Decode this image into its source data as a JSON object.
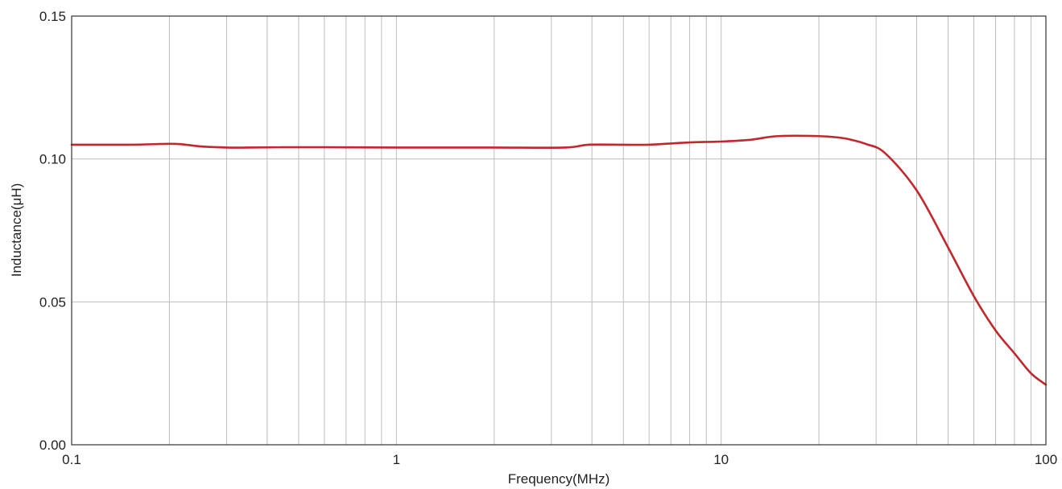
{
  "chart_data": {
    "type": "line",
    "xlabel": "Frequency(MHz)",
    "ylabel": "Inductance(μH)",
    "xscale": "log",
    "xlim": [
      0.1,
      100
    ],
    "ylim": [
      0,
      0.15
    ],
    "x_ticks": [
      {
        "value": 0.1,
        "label": "0.1"
      },
      {
        "value": 1,
        "label": "1"
      },
      {
        "value": 10,
        "label": "10"
      },
      {
        "value": 100,
        "label": "100"
      }
    ],
    "y_ticks": [
      {
        "value": 0,
        "label": "0.00"
      },
      {
        "value": 0.05,
        "label": "0.05"
      },
      {
        "value": 0.1,
        "label": "0.10"
      },
      {
        "value": 0.15,
        "label": "0.15"
      }
    ],
    "grid": true,
    "colors": {
      "line": "#c0282d",
      "grid": "#bdbdbd",
      "axis": "#333333"
    },
    "series": [
      {
        "x": [
          0.1,
          0.15,
          0.2,
          0.22,
          0.25,
          0.3,
          0.35,
          0.45,
          0.6,
          1,
          2,
          3.3,
          3.9,
          5,
          6,
          8,
          10,
          12,
          13,
          15,
          20,
          23,
          25,
          28,
          32,
          40,
          50,
          60,
          70,
          80,
          90,
          100
        ],
        "values": [
          0.105,
          0.105,
          0.1053,
          0.1051,
          0.1044,
          0.104,
          0.104,
          0.1041,
          0.1041,
          0.104,
          0.104,
          0.104,
          0.105,
          0.105,
          0.105,
          0.1058,
          0.1061,
          0.1066,
          0.1071,
          0.108,
          0.108,
          0.1075,
          0.1068,
          0.1052,
          0.102,
          0.089,
          0.069,
          0.052,
          0.04,
          0.032,
          0.025,
          0.021
        ]
      }
    ]
  }
}
